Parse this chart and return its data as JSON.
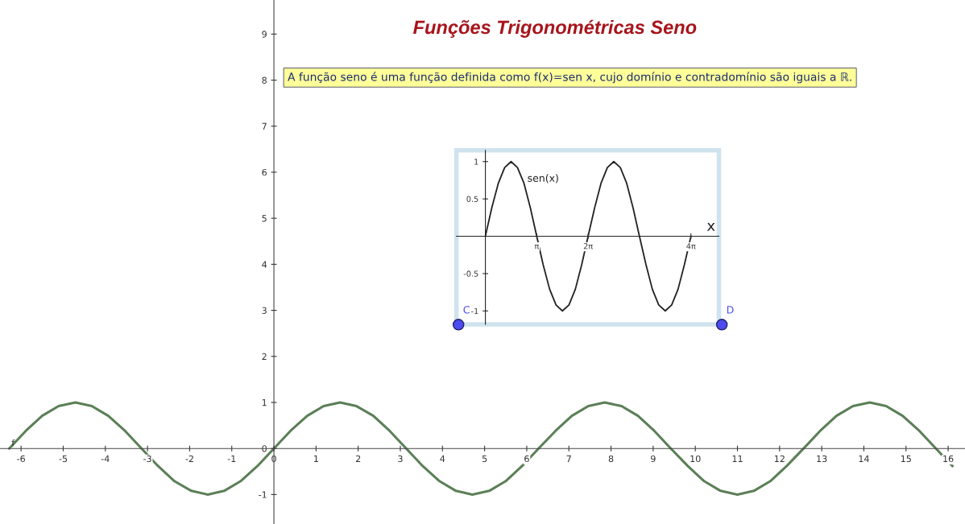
{
  "chart_data": [
    {
      "type": "line",
      "title": "Funções Trigonométricas Seno",
      "annotations": [
        "A função seno é uma função definida como f(x)=sen x, cujo domínio e contradomínio são iguais a ℝ."
      ],
      "xlim": [
        -6.5,
        16.4
      ],
      "ylim": [
        -1.64,
        9.74
      ],
      "xticks": [
        -6,
        -5,
        -4,
        -3,
        -2,
        -1,
        0,
        1,
        2,
        3,
        4,
        5,
        6,
        7,
        8,
        9,
        10,
        11,
        12,
        13,
        14,
        15,
        16
      ],
      "yticks": [
        -1,
        0,
        1,
        2,
        3,
        4,
        5,
        6,
        7,
        8,
        9
      ],
      "grid": false,
      "line_style": "solid",
      "marker": "none",
      "series": [
        {
          "name": "f",
          "color": "#5b7f57",
          "x": [
            -6.28,
            -5.89,
            -5.5,
            -5.11,
            -4.71,
            -4.32,
            -3.93,
            -3.53,
            -3.14,
            -2.75,
            -2.36,
            -1.96,
            -1.57,
            -1.18,
            -0.79,
            -0.39,
            0,
            0.39,
            0.79,
            1.18,
            1.57,
            1.96,
            2.36,
            2.75,
            3.14,
            3.53,
            3.93,
            4.32,
            4.71,
            5.11,
            5.5,
            5.89,
            6.28,
            6.68,
            7.07,
            7.46,
            7.85,
            8.25,
            8.64,
            9.03,
            9.42,
            9.82,
            10.21,
            10.6,
            11.0,
            11.39,
            11.78,
            12.17,
            12.57,
            12.96,
            13.35,
            13.74,
            14.14,
            14.53,
            14.92,
            15.32,
            15.71,
            16.1
          ],
          "values": [
            0,
            0.38,
            0.71,
            0.92,
            1,
            0.92,
            0.71,
            0.38,
            0,
            -0.38,
            -0.71,
            -0.92,
            -1,
            -0.92,
            -0.71,
            -0.38,
            0,
            0.38,
            0.71,
            0.92,
            1,
            0.92,
            0.71,
            0.38,
            0,
            -0.38,
            -0.71,
            -0.92,
            -1,
            -0.92,
            -0.71,
            -0.38,
            0,
            0.38,
            0.71,
            0.92,
            1,
            0.92,
            0.71,
            0.38,
            0,
            -0.38,
            -0.71,
            -0.92,
            -1,
            -0.92,
            -0.71,
            -0.38,
            0,
            0.38,
            0.71,
            0.92,
            1,
            0.92,
            0.71,
            0.38,
            0,
            -0.38
          ]
        },
        {
          "name": "C",
          "type": "scatter",
          "marker": "circle",
          "color": "#4b4bf0",
          "x": [
            4.38
          ],
          "values": [
            2.69
          ]
        },
        {
          "name": "D",
          "type": "scatter",
          "marker": "circle",
          "color": "#4b4bf0",
          "x": [
            10.63
          ],
          "values": [
            2.69
          ]
        }
      ]
    },
    {
      "type": "line",
      "xlabel": "x",
      "annotations": [
        "sen(x)"
      ],
      "xlim": [
        -1.77,
        14.28
      ],
      "ylim": [
        -1.18,
        1.15
      ],
      "xticks": [
        {
          "value": 3.14159,
          "label": "π"
        },
        {
          "value": 6.28319,
          "label": "2π"
        },
        {
          "value": 12.56637,
          "label": "4π"
        }
      ],
      "yticks": [
        {
          "value": 1,
          "label": "1"
        },
        {
          "value": 0.5,
          "label": "0.5"
        },
        {
          "value": -0.5,
          "label": "-0.5"
        },
        {
          "value": -1,
          "label": "-1"
        }
      ],
      "grid": false,
      "line_style": "solid",
      "marker": "none",
      "series": [
        {
          "color": "#222222",
          "x": [
            0,
            0.39,
            0.79,
            1.18,
            1.57,
            1.96,
            2.36,
            2.75,
            3.14,
            3.53,
            3.93,
            4.32,
            4.71,
            5.11,
            5.5,
            5.89,
            6.28,
            6.68,
            7.07,
            7.46,
            7.85,
            8.25,
            8.64,
            9.03,
            9.42,
            9.82,
            10.21,
            10.6,
            11.0,
            11.39,
            11.78,
            12.17,
            12.57
          ],
          "values": [
            0,
            0.38,
            0.71,
            0.92,
            1,
            0.92,
            0.71,
            0.38,
            0,
            -0.38,
            -0.71,
            -0.92,
            -1,
            -0.92,
            -0.71,
            -0.38,
            0,
            0.38,
            0.71,
            0.92,
            1,
            0.92,
            0.71,
            0.38,
            0,
            -0.38,
            -0.71,
            -0.92,
            -1,
            -0.92,
            -0.71,
            -0.38,
            0
          ]
        }
      ]
    }
  ]
}
